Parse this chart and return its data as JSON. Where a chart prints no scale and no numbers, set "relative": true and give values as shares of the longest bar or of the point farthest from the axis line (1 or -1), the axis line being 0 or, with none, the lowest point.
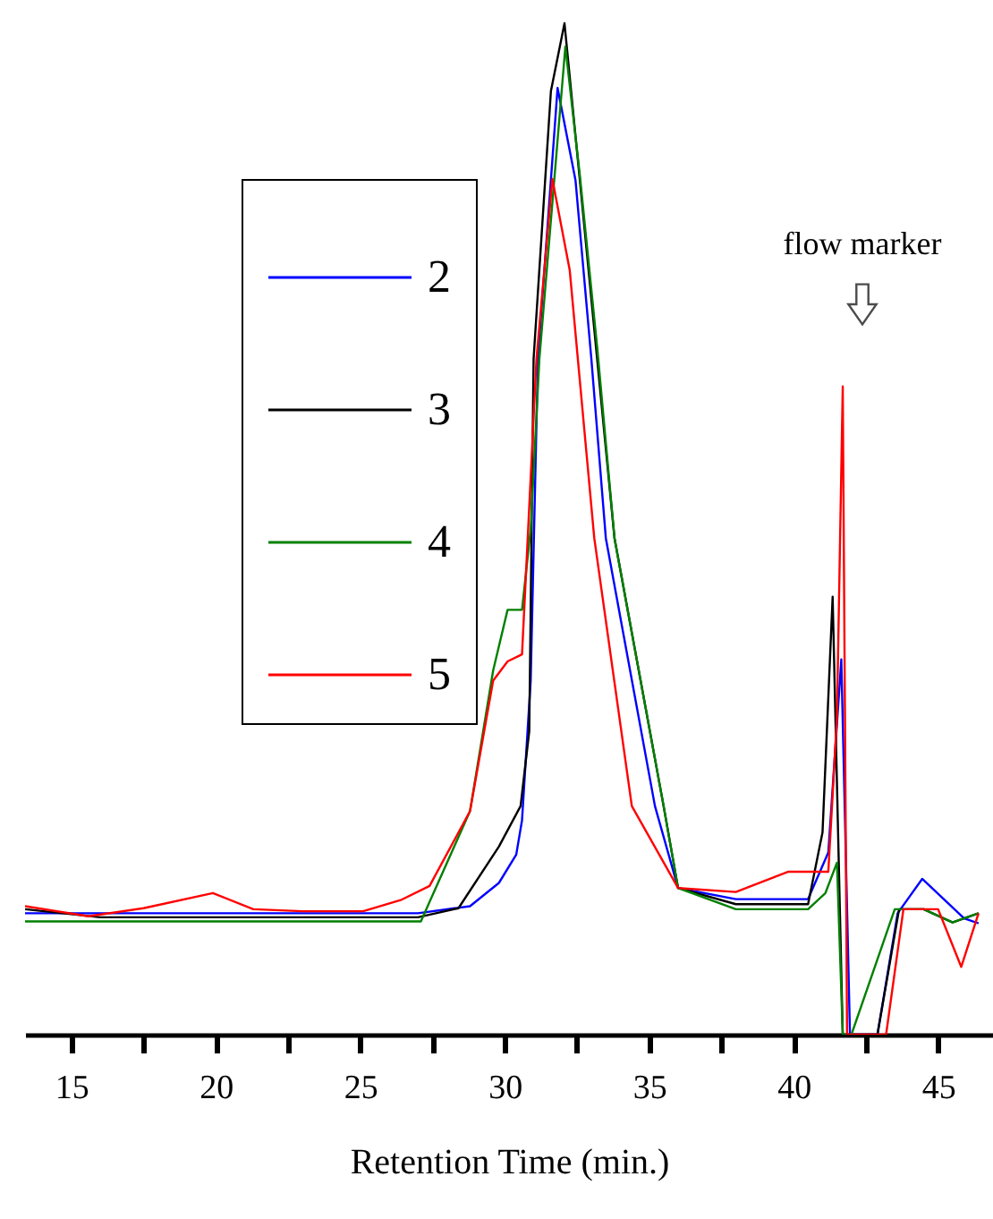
{
  "chart_data": {
    "type": "line",
    "xlabel": "Retention Time (min.)",
    "relative": true,
    "xlim": [
      13.4,
      46.9
    ],
    "xticks": [
      15,
      {
        "value": 17.5,
        "label": null
      },
      20,
      {
        "value": 22.5,
        "label": null
      },
      25,
      {
        "value": 27.5,
        "label": null
      },
      30,
      {
        "value": 32.5,
        "label": null
      },
      35,
      {
        "value": 37.5,
        "label": null
      },
      40,
      {
        "value": 42.5,
        "label": null
      },
      45
    ],
    "legend": "top left",
    "grid": false,
    "marker": "none",
    "line_style": "solid",
    "annotations": [
      "flow marker"
    ],
    "series": [
      {
        "name": "2",
        "color": "#0000ff",
        "x": [
          13.4,
          16,
          20,
          24,
          27,
          28.8,
          29.8,
          30.4,
          30.6,
          30.9,
          31.15,
          31.83,
          32.45,
          33.0,
          33.5,
          35.2,
          36.0,
          38.0,
          40.5,
          41.2,
          41.65,
          41.95,
          42.9,
          43.6,
          44.45,
          45.9,
          46.4
        ],
        "values": [
          0.12,
          0.12,
          0.12,
          0.12,
          0.12,
          0.127,
          0.15,
          0.178,
          0.212,
          0.35,
          0.668,
          0.936,
          0.845,
          0.668,
          0.491,
          0.226,
          0.145,
          0.134,
          0.134,
          0.18,
          0.371,
          0,
          0,
          0.12,
          0.154,
          0.115,
          0.11
        ]
      },
      {
        "name": "3",
        "color": "#000000",
        "x": [
          13.4,
          16,
          20,
          24,
          27,
          28.4,
          29.8,
          30.55,
          30.85,
          31.0,
          31.6,
          32.07,
          32.6,
          33.2,
          33.8,
          35.5,
          36.0,
          38.0,
          40.5,
          41.0,
          41.35,
          41.7,
          42.9,
          43.65,
          44.5,
          45.5,
          46.4
        ],
        "values": [
          0.124,
          0.116,
          0.116,
          0.116,
          0.116,
          0.125,
          0.186,
          0.226,
          0.3,
          0.668,
          0.933,
          1.0,
          0.845,
          0.668,
          0.491,
          0.226,
          0.145,
          0.129,
          0.129,
          0.2,
          0.433,
          0,
          0,
          0.124,
          0.124,
          0.111,
          0.12
        ]
      },
      {
        "name": "4",
        "color": "#008000",
        "x": [
          13.4,
          16,
          20,
          24,
          27.1,
          28.8,
          29.6,
          30.1,
          30.6,
          30.9,
          31.2,
          32.1,
          32.6,
          33.2,
          33.8,
          35.5,
          36.0,
          38.0,
          40.5,
          41.1,
          41.5,
          41.7,
          42.0,
          43.5,
          44.5,
          45.5,
          46.4
        ],
        "values": [
          0.112,
          0.112,
          0.112,
          0.112,
          0.112,
          0.221,
          0.36,
          0.42,
          0.42,
          0.5,
          0.668,
          0.977,
          0.85,
          0.68,
          0.491,
          0.226,
          0.145,
          0.124,
          0.124,
          0.14,
          0.17,
          0,
          0,
          0.124,
          0.124,
          0.111,
          0.12
        ]
      },
      {
        "name": "5",
        "color": "#ff0000",
        "x": [
          13.4,
          15.6,
          17.5,
          19.9,
          21.3,
          23,
          25.1,
          26.4,
          27.4,
          28.8,
          29.6,
          30.1,
          30.6,
          31.1,
          31.65,
          32.25,
          33.1,
          34.4,
          36.0,
          38.0,
          39.8,
          41.2,
          41.5,
          41.7,
          41.85,
          43.2,
          43.8,
          45.0,
          45.8,
          46.4
        ],
        "values": [
          0.127,
          0.117,
          0.125,
          0.14,
          0.124,
          0.122,
          0.122,
          0.133,
          0.147,
          0.221,
          0.35,
          0.369,
          0.376,
          0.668,
          0.846,
          0.756,
          0.491,
          0.226,
          0.145,
          0.141,
          0.161,
          0.161,
          0.314,
          0.641,
          0,
          0,
          0.124,
          0.124,
          0.067,
          0.12
        ]
      }
    ]
  }
}
